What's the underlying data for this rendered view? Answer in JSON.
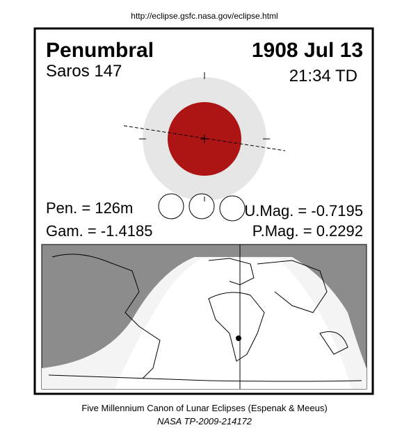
{
  "header": {
    "url": "http://eclipse.gsfc.nasa.gov/eclipse.html"
  },
  "eclipse": {
    "type": "Penumbral",
    "date": "1908 Jul 13",
    "saros": "Saros 147",
    "time": "21:34 TD",
    "pen": "Pen. = 126m",
    "gam": "Gam. = -1.4185",
    "umag": "U.Mag. = -0.7195",
    "pmag": "P.Mag. = 0.2292"
  },
  "footer": {
    "line1": "Five Millennium Canon of Lunar Eclipses (Espenak & Meeus)",
    "line2": "NASA TP-2009-214172"
  }
}
